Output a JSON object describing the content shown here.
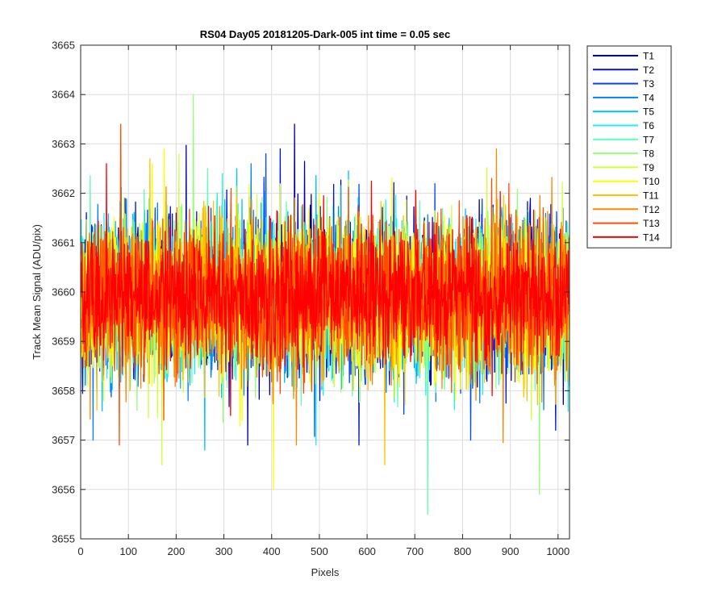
{
  "chart_data": {
    "type": "line",
    "title": "RS04 Day05 20181205-Dark-005 int time = 0.05 sec",
    "xlabel": "Pixels",
    "ylabel": "Track Mean Signal (ADU/pix)",
    "xlim": [
      0,
      1024
    ],
    "ylim": [
      3655,
      3665
    ],
    "x_ticks": [
      0,
      100,
      200,
      300,
      400,
      500,
      600,
      700,
      800,
      900,
      1000
    ],
    "y_ticks": [
      3655,
      3656,
      3657,
      3658,
      3659,
      3660,
      3661,
      3662,
      3663,
      3664,
      3665
    ],
    "grid": true,
    "legend_position": "outside-right-top",
    "n_points": 1024,
    "series": [
      {
        "name": "T1",
        "color": "#0000a0",
        "mean": 3659.9,
        "sd": 0.75,
        "max": 3663.4,
        "min": 3656.9
      },
      {
        "name": "T2",
        "color": "#0014d2",
        "mean": 3659.9,
        "sd": 0.75,
        "max": 3662.9,
        "min": 3656.9
      },
      {
        "name": "T3",
        "color": "#0046ff",
        "mean": 3659.9,
        "sd": 0.75,
        "max": 3662.8,
        "min": 3657.0
      },
      {
        "name": "T4",
        "color": "#0082ff",
        "mean": 3659.9,
        "sd": 0.75,
        "max": 3662.6,
        "min": 3657.0
      },
      {
        "name": "T5",
        "color": "#00beff",
        "mean": 3659.9,
        "sd": 0.75,
        "max": 3662.5,
        "min": 3656.8
      },
      {
        "name": "T6",
        "color": "#1ef0f0",
        "mean": 3659.9,
        "sd": 0.75,
        "max": 3662.4,
        "min": 3656.9
      },
      {
        "name": "T7",
        "color": "#5affb4",
        "mean": 3659.9,
        "sd": 0.75,
        "max": 3662.5,
        "min": 3655.5
      },
      {
        "name": "T8",
        "color": "#96ff78",
        "mean": 3659.9,
        "sd": 0.75,
        "max": 3664.0,
        "min": 3655.9
      },
      {
        "name": "T9",
        "color": "#d2ff3c",
        "mean": 3659.9,
        "sd": 0.75,
        "max": 3662.8,
        "min": 3656.5
      },
      {
        "name": "T10",
        "color": "#ffff00",
        "mean": 3659.9,
        "sd": 0.75,
        "max": 3662.9,
        "min": 3656.0
      },
      {
        "name": "T11",
        "color": "#ffc300",
        "mean": 3659.9,
        "sd": 0.75,
        "max": 3662.7,
        "min": 3656.5
      },
      {
        "name": "T12",
        "color": "#ff8700",
        "mean": 3659.9,
        "sd": 0.75,
        "max": 3662.9,
        "min": 3656.9
      },
      {
        "name": "T13",
        "color": "#ff4b00",
        "mean": 3659.9,
        "sd": 0.72,
        "max": 3663.4,
        "min": 3656.9
      },
      {
        "name": "T14",
        "color": "#ff0000",
        "mean": 3659.9,
        "sd": 0.68,
        "max": 3662.6,
        "min": 3657.5
      }
    ]
  }
}
